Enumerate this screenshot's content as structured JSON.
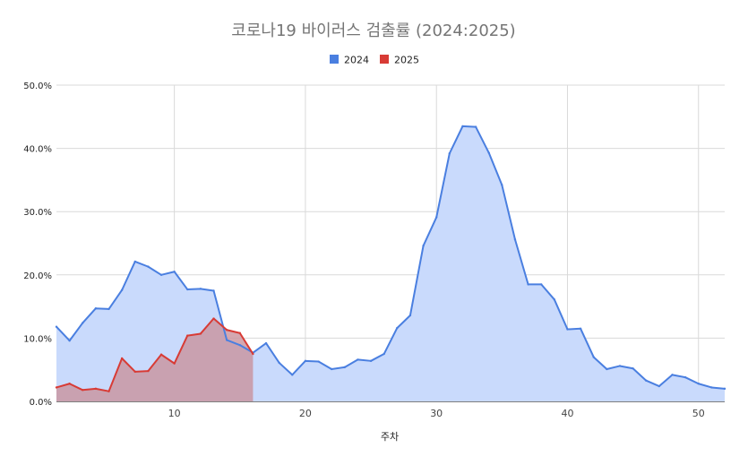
{
  "chart_data": {
    "type": "area",
    "title": "코로나19 바이러스 검출률 (2024:2025)",
    "xlabel": "주차",
    "ylabel": "",
    "xlim": [
      1,
      52
    ],
    "ylim": [
      0,
      50
    ],
    "x_ticks": [
      10,
      20,
      30,
      40,
      50
    ],
    "y_ticks": [
      "0.0%",
      "10.0%",
      "20.0%",
      "30.0%",
      "40.0%",
      "50.0%"
    ],
    "y_tick_values": [
      0,
      10,
      20,
      30,
      40,
      50
    ],
    "grid": true,
    "legend_position": "top",
    "series": [
      {
        "name": "2024",
        "color": "#4a7fe0",
        "fill": "#c9dafc",
        "x": [
          1,
          2,
          3,
          4,
          5,
          6,
          7,
          8,
          9,
          10,
          11,
          12,
          13,
          14,
          15,
          16,
          17,
          18,
          19,
          20,
          21,
          22,
          23,
          24,
          25,
          26,
          27,
          28,
          29,
          30,
          31,
          32,
          33,
          34,
          35,
          36,
          37,
          38,
          39,
          40,
          41,
          42,
          43,
          44,
          45,
          46,
          47,
          48,
          49,
          50,
          51,
          52
        ],
        "values": [
          11.8,
          9.6,
          12.4,
          14.7,
          14.6,
          17.6,
          22.1,
          21.3,
          20.0,
          20.5,
          17.7,
          17.8,
          17.5,
          9.7,
          8.9,
          7.7,
          9.2,
          6.1,
          4.2,
          6.4,
          6.3,
          5.1,
          5.4,
          6.6,
          6.4,
          7.5,
          11.6,
          13.6,
          24.6,
          29.1,
          39.2,
          43.5,
          43.4,
          39.3,
          34.2,
          25.6,
          18.5,
          18.5,
          16.1,
          11.4,
          11.5,
          7.0,
          5.1,
          5.6,
          5.2,
          3.3,
          2.4,
          4.2,
          3.8,
          2.8,
          2.2,
          2.0
        ]
      },
      {
        "name": "2025",
        "color": "#d83b35",
        "fill": "#c9929c",
        "x": [
          1,
          2,
          3,
          4,
          5,
          6,
          7,
          8,
          9,
          10,
          11,
          12,
          13,
          14,
          15,
          16
        ],
        "values": [
          2.2,
          2.8,
          1.8,
          2.0,
          1.6,
          6.8,
          4.7,
          4.8,
          7.4,
          6.0,
          10.4,
          10.7,
          13.1,
          11.3,
          10.8,
          7.5
        ]
      }
    ]
  }
}
